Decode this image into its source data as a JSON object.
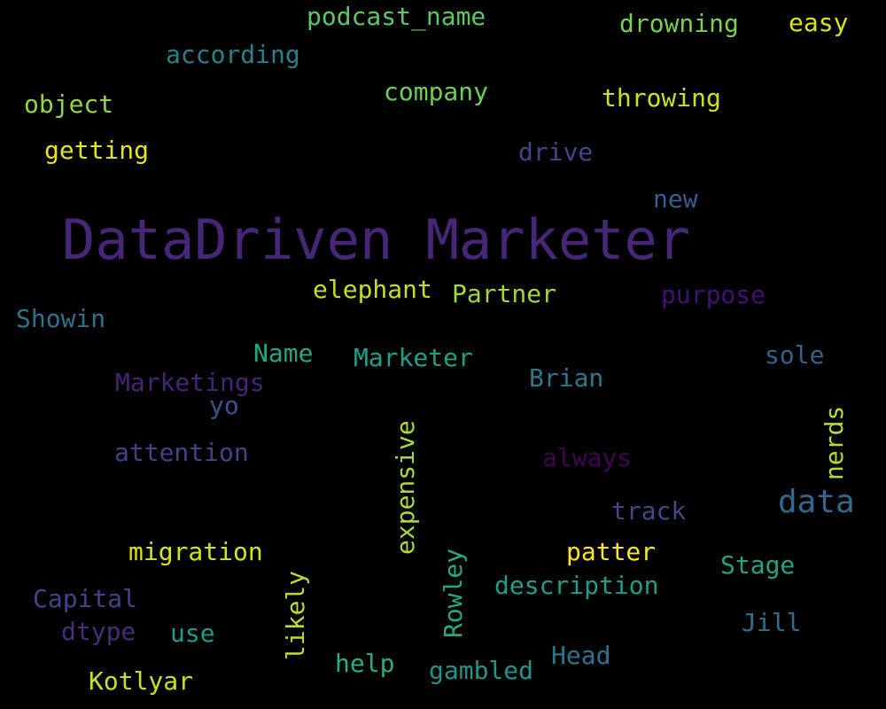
{
  "words": [
    {
      "id": "datadriven-marketer",
      "text": "DataDriven Marketer",
      "color": "#482677"
    },
    {
      "id": "podcast-name",
      "text": "podcast_name",
      "color": "#5cc863"
    },
    {
      "id": "drowning",
      "text": "drowning",
      "color": "#7ad151"
    },
    {
      "id": "easy",
      "text": "easy",
      "color": "#dde318"
    },
    {
      "id": "according",
      "text": "according",
      "color": "#26828e"
    },
    {
      "id": "company",
      "text": "company",
      "color": "#6ece58"
    },
    {
      "id": "throwing",
      "text": "throwing",
      "color": "#d0e11c"
    },
    {
      "id": "object",
      "text": "object",
      "color": "#8fd744"
    },
    {
      "id": "getting",
      "text": "getting",
      "color": "#e5e419"
    },
    {
      "id": "drive",
      "text": "drive",
      "color": "#3f4788"
    },
    {
      "id": "new",
      "text": "new",
      "color": "#355f8d"
    },
    {
      "id": "elephant",
      "text": "elephant",
      "color": "#c2df23"
    },
    {
      "id": "partner",
      "text": "Partner",
      "color": "#9fda3a"
    },
    {
      "id": "purpose",
      "text": "purpose",
      "color": "#440f76"
    },
    {
      "id": "showin",
      "text": "Showin",
      "color": "#2c728e"
    },
    {
      "id": "name",
      "text": "Name",
      "color": "#22a884"
    },
    {
      "id": "marketer",
      "text": "Marketer",
      "color": "#1fa187"
    },
    {
      "id": "brian",
      "text": "Brian",
      "color": "#2a788e"
    },
    {
      "id": "sole",
      "text": "sole",
      "color": "#33638d"
    },
    {
      "id": "marketings",
      "text": "Marketings",
      "color": "#482475"
    },
    {
      "id": "yo",
      "text": "yo",
      "color": "#3b528b"
    },
    {
      "id": "nerds",
      "text": "nerds",
      "color": "#b5de2b"
    },
    {
      "id": "expensive",
      "text": "expensive",
      "color": "#a8db34"
    },
    {
      "id": "attention",
      "text": "attention",
      "color": "#414487"
    },
    {
      "id": "always",
      "text": "always",
      "color": "#440154"
    },
    {
      "id": "data",
      "text": "data",
      "color": "#31688e"
    },
    {
      "id": "track",
      "text": "track",
      "color": "#3e4989"
    },
    {
      "id": "migration",
      "text": "migration",
      "color": "#d8e219"
    },
    {
      "id": "patter",
      "text": "patter",
      "color": "#fde725"
    },
    {
      "id": "stage",
      "text": "Stage",
      "color": "#20a386"
    },
    {
      "id": "rowley",
      "text": "Rowley",
      "color": "#25ab82"
    },
    {
      "id": "capital",
      "text": "Capital",
      "color": "#404588"
    },
    {
      "id": "likely",
      "text": "likely",
      "color": "#bade28"
    },
    {
      "id": "description",
      "text": "description",
      "color": "#1f9e89"
    },
    {
      "id": "dtype",
      "text": "dtype",
      "color": "#472d7b"
    },
    {
      "id": "use",
      "text": "use",
      "color": "#1e9b8a"
    },
    {
      "id": "jill",
      "text": "Jill",
      "color": "#2d708e"
    },
    {
      "id": "help",
      "text": "help",
      "color": "#29af7f"
    },
    {
      "id": "gambled",
      "text": "gambled",
      "color": "#1f958b"
    },
    {
      "id": "head",
      "text": "Head",
      "color": "#2b758e"
    },
    {
      "id": "kotlyar",
      "text": "Kotlyar",
      "color": "#cae11f"
    }
  ]
}
